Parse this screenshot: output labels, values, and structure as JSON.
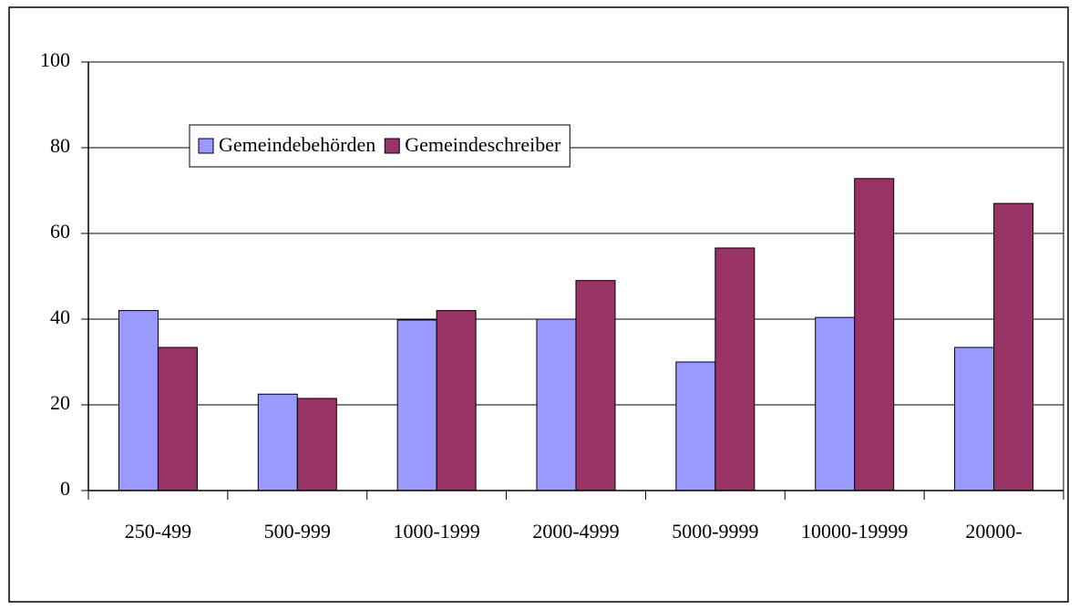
{
  "chart_data": {
    "type": "bar",
    "categories": [
      "250-499",
      "500-999",
      "1000-1999",
      "2000-4999",
      "5000-9999",
      "10000-19999",
      "20000-"
    ],
    "series": [
      {
        "name": "Gemeindebehörden",
        "color": "#9999ff",
        "values": [
          42,
          22.5,
          39.8,
          40,
          30,
          40.4,
          33.4
        ]
      },
      {
        "name": "Gemeindeschreiber",
        "color": "#993366",
        "values": [
          33.4,
          21.5,
          42,
          49,
          56.6,
          72.8,
          67
        ]
      }
    ],
    "ylim": [
      0,
      100
    ],
    "yticks": [
      0,
      20,
      40,
      60,
      80,
      100
    ],
    "grid": true
  }
}
